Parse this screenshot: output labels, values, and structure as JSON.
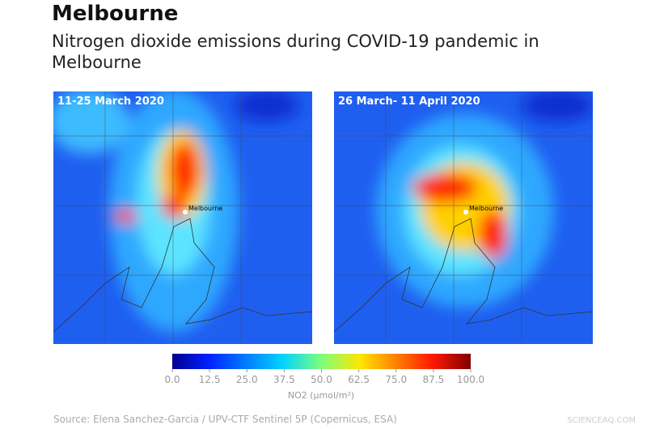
{
  "header": {
    "title": "Melbourne",
    "subtitle": "Nitrogen dioxide emissions during COVID-19 pandemic in Melbourne"
  },
  "panels": [
    {
      "label": "11-25 March 2020",
      "city": "Melbourne"
    },
    {
      "label": "26 March- 11 April 2020",
      "city": "Melbourne"
    }
  ],
  "colorbar": {
    "label": "NO2 (µmol/m²)",
    "lim": [
      0,
      100
    ],
    "ticks": [
      {
        "value": 0,
        "label": "0.0"
      },
      12.5,
      {
        "value": 25,
        "label": "25.0"
      },
      37.5,
      {
        "value": 50,
        "label": "50.0"
      },
      62.5,
      {
        "value": 75,
        "label": "75.0"
      },
      87.5,
      {
        "value": 100,
        "label": "100.0"
      }
    ]
  },
  "source": "Source: Elena Sanchez-Garcia / UPV-CTF Sentinel 5P (Copernicus, ESA)",
  "watermark": "SCIENCEAQ.COM"
}
